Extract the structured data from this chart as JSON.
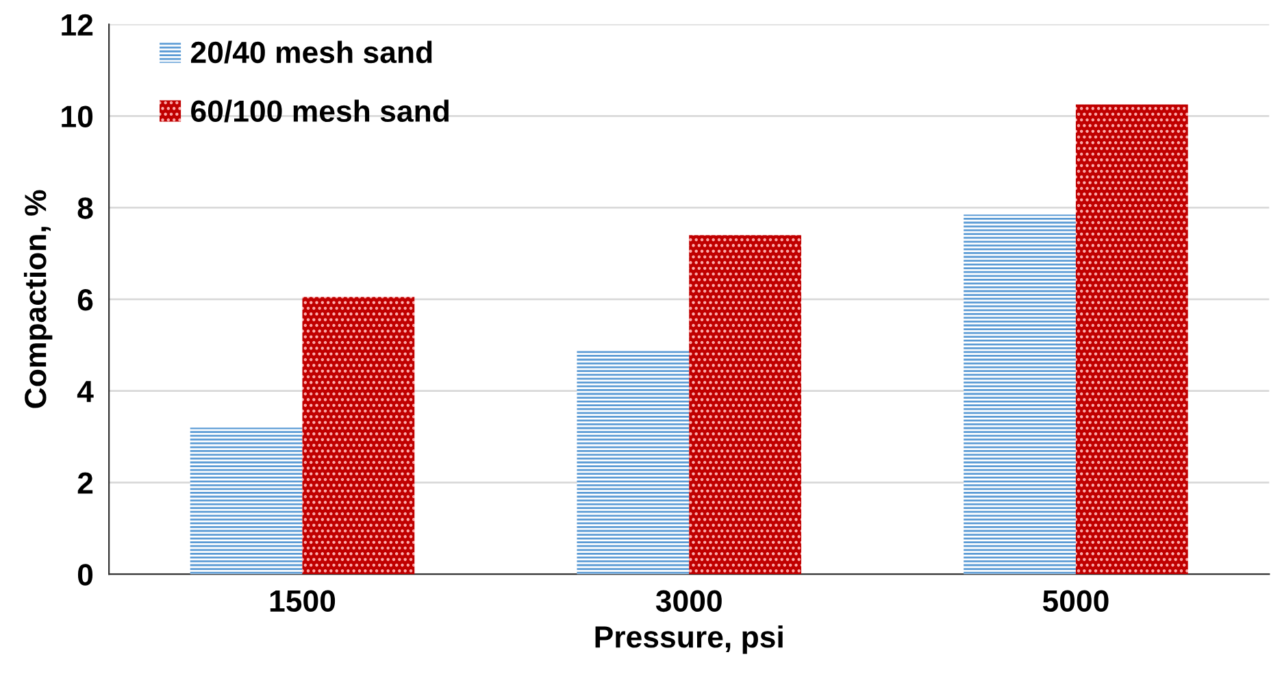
{
  "chart_data": {
    "type": "bar",
    "xlabel": "Pressure, psi",
    "ylabel": "Compaction, %",
    "categories": [
      "1500",
      "3000",
      "5000"
    ],
    "series": [
      {
        "name": "20/40 mesh sand",
        "color": "#5b9bd5",
        "values": [
          3.2,
          4.9,
          7.85
        ]
      },
      {
        "name": "60/100 mesh sand",
        "color": "#c00000",
        "values": [
          6.05,
          7.4,
          10.25
        ]
      }
    ],
    "ylim": [
      0,
      12
    ],
    "yticks": [
      0,
      2,
      4,
      6,
      8,
      10,
      12
    ],
    "grid": "y",
    "legend": "top left"
  }
}
